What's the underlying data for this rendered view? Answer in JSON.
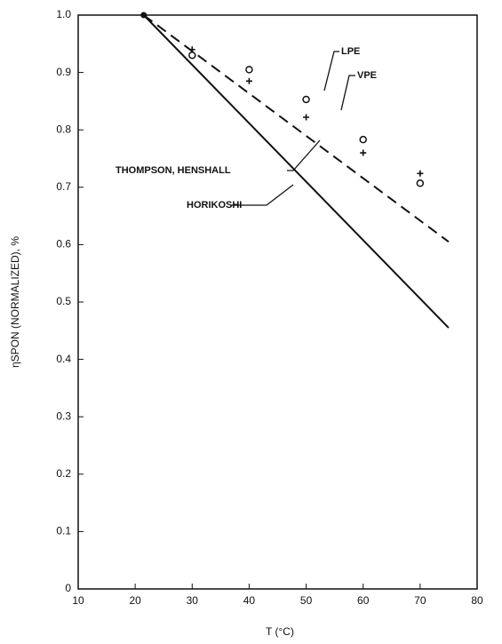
{
  "chart_data": {
    "type": "line",
    "xlabel": "T (°C)",
    "ylabel": "ηSPON (NORMALIZED), %",
    "xlim": [
      10,
      80
    ],
    "xticks": [
      10,
      20,
      30,
      40,
      50,
      60,
      70,
      80
    ],
    "ylim": [
      0,
      1.0
    ],
    "yticks": [
      0,
      {
        "value": 0.1,
        "label": "0.1"
      },
      {
        "value": 0.2,
        "label": "0.2"
      },
      {
        "value": 0.3,
        "label": "0.3"
      },
      {
        "value": 0.4,
        "label": "0.4"
      },
      {
        "value": 0.5,
        "label": "0.5"
      },
      {
        "value": 0.6,
        "label": "0.6"
      },
      {
        "value": 0.7,
        "label": "0.7"
      },
      {
        "value": 0.8,
        "label": "0.8"
      },
      {
        "value": 0.9,
        "label": "0.9"
      },
      {
        "value": 1.0,
        "label": "1.0"
      }
    ],
    "series": [
      {
        "name": "THOMPSON, HENSHALL",
        "style": "dashed",
        "color": "#111111",
        "x": [
          21.5,
          75
        ],
        "values": [
          1.0,
          0.605
        ]
      },
      {
        "name": "HORIKOSHI",
        "style": "solid",
        "color": "#111111",
        "x": [
          21.5,
          75
        ],
        "values": [
          1.0,
          0.455
        ]
      },
      {
        "name": "LPE",
        "style": "circle",
        "color": "#111111",
        "x": [
          30,
          40,
          50,
          60,
          70
        ],
        "values": [
          0.93,
          0.905,
          0.853,
          0.783,
          0.707
        ]
      },
      {
        "name": "VPE",
        "style": "plus",
        "color": "#111111",
        "x": [
          30,
          40,
          50,
          60,
          70
        ],
        "values": [
          0.94,
          0.885,
          0.822,
          0.76,
          0.724
        ]
      }
    ]
  }
}
